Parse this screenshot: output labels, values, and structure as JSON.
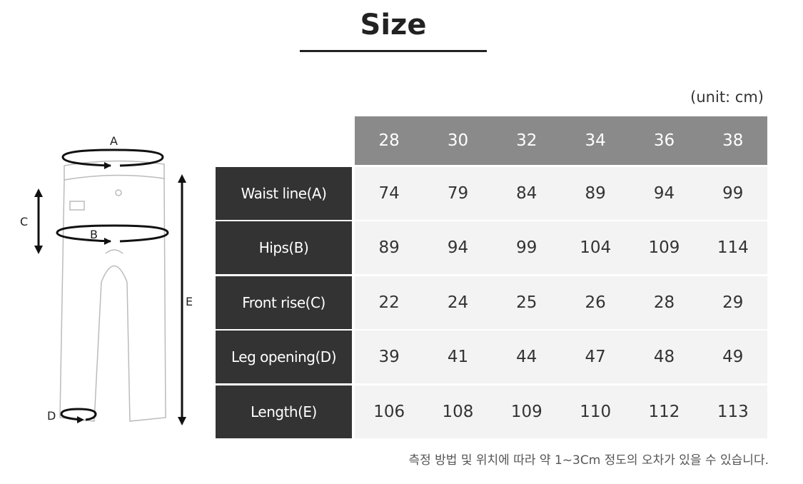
{
  "title": "Size",
  "unit": "(unit: cm)",
  "sizes": [
    "28",
    "30",
    "32",
    "34",
    "36",
    "38"
  ],
  "rows": [
    {
      "label": "Waist line(A)",
      "values": [
        "74",
        "79",
        "84",
        "89",
        "94",
        "99"
      ]
    },
    {
      "label": "Hips(B)",
      "values": [
        "89",
        "94",
        "99",
        "104",
        "109",
        "114"
      ]
    },
    {
      "label": "Front rise(C)",
      "values": [
        "22",
        "24",
        "25",
        "26",
        "28",
        "29"
      ]
    },
    {
      "label": "Leg opening(D)",
      "values": [
        "39",
        "41",
        "44",
        "47",
        "48",
        "49"
      ]
    },
    {
      "label": "Length(E)",
      "values": [
        "106",
        "108",
        "109",
        "110",
        "112",
        "113"
      ]
    }
  ],
  "diagram": {
    "labels": [
      "A",
      "B",
      "C",
      "D",
      "E"
    ]
  },
  "note": "측정 방법 및 위치에 따라 약 1~3Cm 정도의 오차가 있을 수 있습니다."
}
